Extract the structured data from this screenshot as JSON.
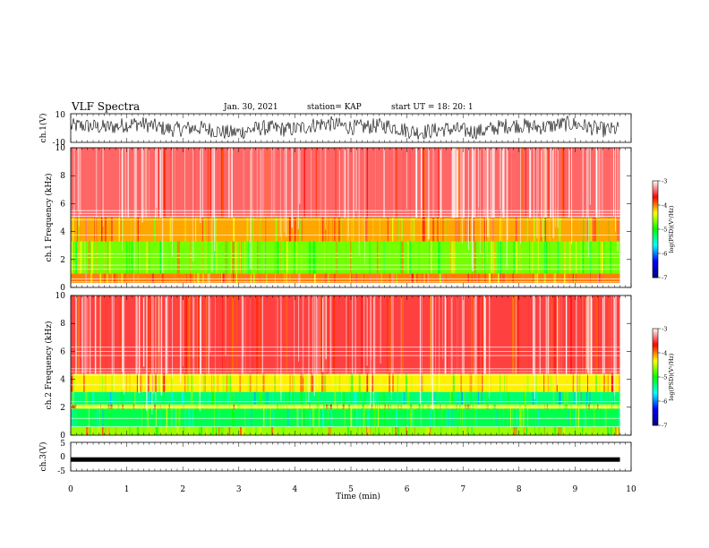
{
  "header": {
    "title": "VLF Spectra",
    "date": "Jan. 30, 2021",
    "station": "station= KAP",
    "start": "start  UT =   18: 20: 1"
  },
  "colorbar": {
    "label": "log(PSD)(V²/Hz)",
    "ticks": [
      "-3",
      "-4",
      "-5",
      "-6",
      "-7"
    ]
  },
  "chart_data": [
    {
      "type": "line",
      "panel": "ch1-waveform",
      "ylabel": "ch.1(V)",
      "ylim": [
        -10,
        10
      ],
      "yticks": [
        "10",
        "-10"
      ],
      "xlim": [
        0,
        10
      ],
      "series": [
        {
          "values_desc": "noisy waveform oscillating roughly between -7 and +8 V",
          "color": "#000000"
        }
      ]
    },
    {
      "type": "heatmap",
      "panel": "ch1-spectrogram",
      "ylabel": "ch.1 Frequency (kHz)",
      "ylim": [
        0,
        10
      ],
      "yticks": [
        "0",
        "2",
        "4",
        "6",
        "8",
        "10"
      ],
      "xlim": [
        0,
        9.8
      ],
      "colorscale": {
        "min": -7,
        "max": -3,
        "stops": [
          "#000080",
          "#0000ff",
          "#00ffff",
          "#00ff00",
          "#ffff00",
          "#ff0000",
          "#ffffff"
        ]
      },
      "bands_khz": [
        {
          "from": 0.3,
          "to": 1.0,
          "level": -4.0
        },
        {
          "from": 1.0,
          "to": 3.3,
          "level": -4.7
        },
        {
          "from": 3.3,
          "to": 5.0,
          "level": -4.1
        },
        {
          "from": 5.0,
          "to": 10.0,
          "level": -3.4
        }
      ],
      "white_lines_khz": [
        0.3,
        0.4,
        0.6,
        1.3,
        1.6,
        2.15,
        2.4,
        3.75,
        4.85,
        5.1,
        5.3,
        5.5
      ]
    },
    {
      "type": "heatmap",
      "panel": "ch2-spectrogram",
      "ylabel": "ch.2 Frequency (kHz)",
      "ylim": [
        0,
        10
      ],
      "yticks": [
        "0",
        "2",
        "4",
        "6",
        "8",
        "10"
      ],
      "xlim": [
        0,
        9.8
      ],
      "colorscale": {
        "min": -7,
        "max": -3,
        "stops": [
          "#000080",
          "#0000ff",
          "#00ffff",
          "#00ff00",
          "#ffff00",
          "#ff0000",
          "#ffffff"
        ]
      },
      "bands_khz": [
        {
          "from": 0.0,
          "to": 0.6,
          "level": -4.6
        },
        {
          "from": 0.6,
          "to": 1.9,
          "level": -5.2
        },
        {
          "from": 1.9,
          "to": 2.2,
          "level": -4.4
        },
        {
          "from": 2.2,
          "to": 3.1,
          "level": -5.3
        },
        {
          "from": 3.1,
          "to": 4.4,
          "level": -4.3
        },
        {
          "from": 4.4,
          "to": 10.0,
          "level": -3.5
        }
      ],
      "white_lines_khz": [
        0.6,
        1.2,
        2.0,
        2.4,
        3.6,
        4.3,
        4.55,
        4.75,
        5.7,
        6.0,
        6.3
      ]
    },
    {
      "type": "line",
      "panel": "ch3-waveform",
      "ylabel": "ch.3(V)",
      "xlabel": "Time (min)",
      "ylim": [
        -5,
        5
      ],
      "yticks": [
        "5",
        "0",
        "-5"
      ],
      "xlim": [
        0,
        10
      ],
      "xticks": [
        "0",
        "1",
        "2",
        "3",
        "4",
        "5",
        "6",
        "7",
        "8",
        "9",
        "10"
      ],
      "series": [
        {
          "values_desc": "constant band near -1 V",
          "level": -1,
          "color": "#000000"
        }
      ]
    }
  ]
}
